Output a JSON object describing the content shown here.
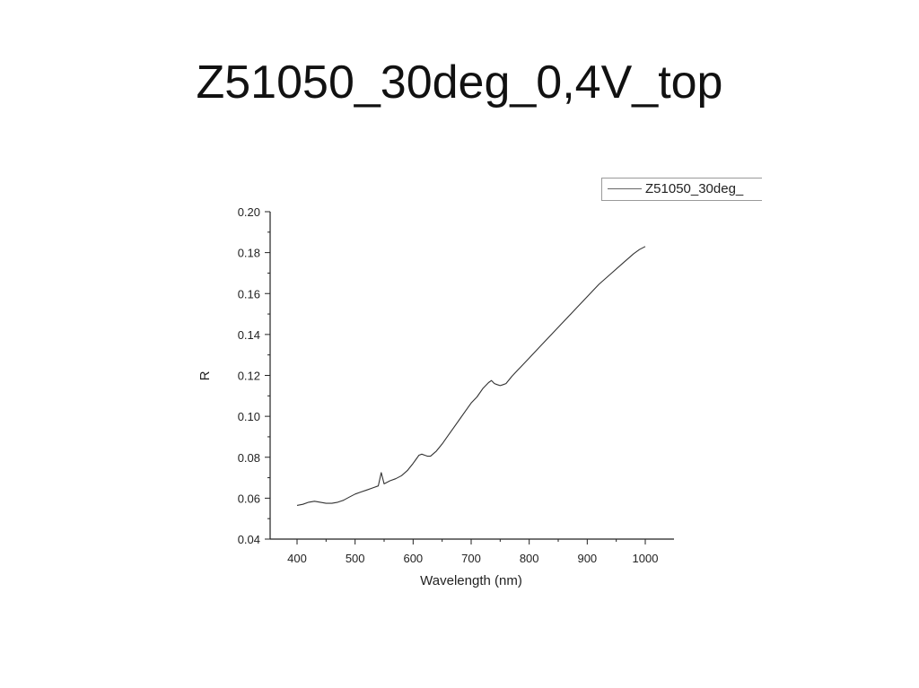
{
  "slide": {
    "title": "Z51050_30deg_0,4V_top"
  },
  "chart_data": {
    "type": "line",
    "title": "",
    "xlabel": "Wavelength (nm)",
    "ylabel": "R",
    "xlim": [
      400,
      1000
    ],
    "ylim": [
      0.04,
      0.2
    ],
    "xticks": [
      "400",
      "500",
      "600",
      "700",
      "800",
      "900",
      "1000"
    ],
    "yticks": [
      "0.04",
      "0.06",
      "0.08",
      "0.10",
      "0.12",
      "0.14",
      "0.16",
      "0.18",
      "0.20"
    ],
    "legend_position": "top-right",
    "grid": false,
    "line_color": "#333333",
    "series": [
      {
        "name": "Z51050_30deg_",
        "x": [
          400,
          410,
          420,
          430,
          440,
          450,
          460,
          470,
          480,
          490,
          500,
          510,
          520,
          530,
          540,
          545,
          550,
          560,
          570,
          580,
          590,
          600,
          605,
          610,
          615,
          620,
          625,
          630,
          640,
          650,
          660,
          670,
          680,
          690,
          700,
          710,
          720,
          730,
          735,
          740,
          745,
          750,
          755,
          760,
          770,
          780,
          790,
          800,
          820,
          840,
          860,
          880,
          900,
          920,
          940,
          960,
          980,
          990,
          1000
        ],
        "y": [
          0.0565,
          0.057,
          0.058,
          0.0585,
          0.058,
          0.0575,
          0.0575,
          0.058,
          0.059,
          0.0605,
          0.062,
          0.063,
          0.064,
          0.065,
          0.066,
          0.0725,
          0.067,
          0.0685,
          0.0695,
          0.071,
          0.0735,
          0.077,
          0.079,
          0.081,
          0.0815,
          0.081,
          0.0805,
          0.0805,
          0.083,
          0.0865,
          0.0905,
          0.0945,
          0.0985,
          0.1025,
          0.1065,
          0.1095,
          0.1135,
          0.1165,
          0.1175,
          0.116,
          0.1155,
          0.115,
          0.1155,
          0.116,
          0.1195,
          0.1225,
          0.1255,
          0.1285,
          0.1345,
          0.1405,
          0.1465,
          0.1525,
          0.1585,
          0.1645,
          0.1695,
          0.1745,
          0.1795,
          0.1815,
          0.183
        ]
      }
    ]
  }
}
